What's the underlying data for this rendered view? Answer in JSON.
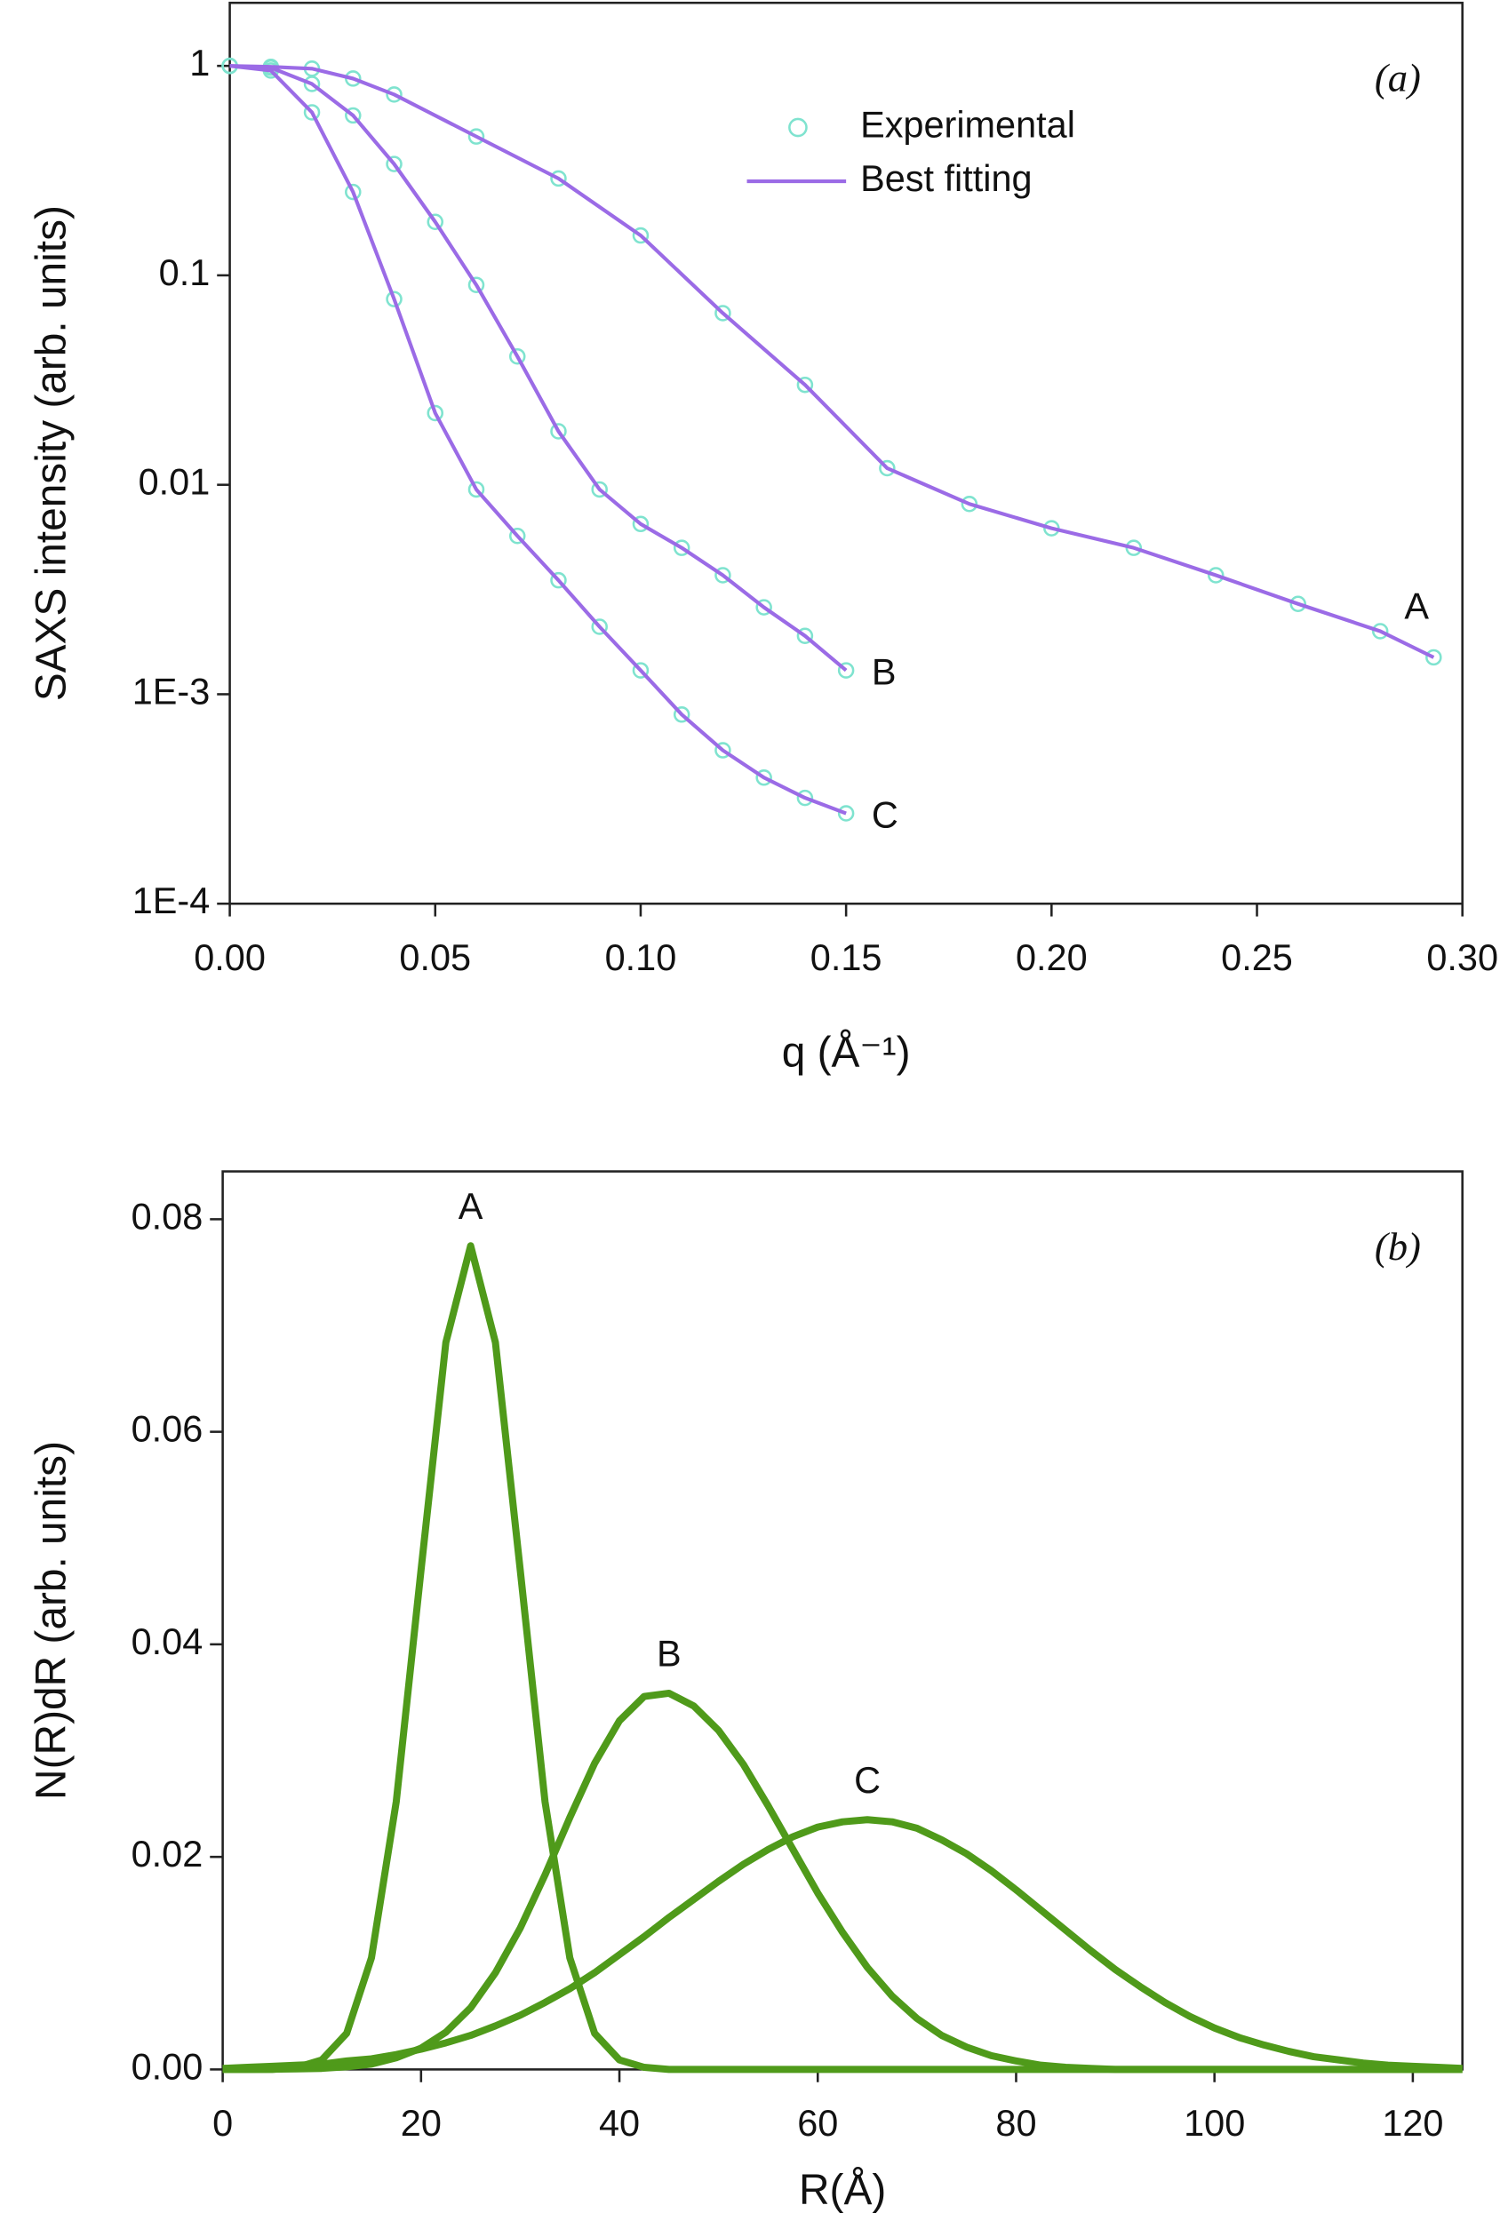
{
  "chart_data": [
    {
      "type": "saxs",
      "panel_label": "(a)",
      "x_label": "q (Å⁻¹)",
      "y_label": "SAXS intensity (arb. units)",
      "ylog": true,
      "legend": "upper right",
      "xlim": [
        0,
        0.3
      ],
      "ylim": [
        0.0001,
        2
      ],
      "xticks": [
        {
          "value": 0,
          "label": "0.00"
        },
        {
          "value": 0.05,
          "label": "0.05"
        },
        {
          "value": 0.1,
          "label": "0.10"
        },
        {
          "value": 0.15,
          "label": "0.15"
        },
        {
          "value": 0.2,
          "label": "0.20"
        },
        {
          "value": 0.25,
          "label": "0.25"
        },
        {
          "value": 0.3,
          "label": "0.30"
        }
      ],
      "yticks": [
        1,
        0.1,
        0.01,
        {
          "value": 0.001,
          "label": "1E-3"
        },
        {
          "value": 0.0001,
          "label": "1E-4"
        }
      ],
      "series": [
        {
          "name": "Experimental",
          "color": "#7fe3cf"
        },
        {
          "name": "Best fitting",
          "color": "#9b6be6"
        }
      ],
      "curves": [
        {
          "label": "A",
          "x": [
            0,
            0.01,
            0.02,
            0.03,
            0.04,
            0.06,
            0.08,
            0.1,
            0.12,
            0.14,
            0.16,
            0.18,
            0.2,
            0.22,
            0.24,
            0.26,
            0.28,
            0.293
          ],
          "experimental": [
            1,
            0.99,
            0.97,
            0.87,
            0.73,
            0.46,
            0.29,
            0.155,
            0.066,
            0.03,
            0.012,
            0.0081,
            0.0062,
            0.005,
            0.0037,
            0.0027,
            0.002,
            0.0015
          ],
          "fit": [
            1,
            0.99,
            0.97,
            0.87,
            0.73,
            0.46,
            0.29,
            0.155,
            0.066,
            0.03,
            0.012,
            0.0081,
            0.0062,
            0.005,
            0.0037,
            0.0027,
            0.002,
            0.0015
          ]
        },
        {
          "label": "B",
          "x": [
            0,
            0.01,
            0.02,
            0.03,
            0.04,
            0.05,
            0.06,
            0.07,
            0.08,
            0.09,
            0.1,
            0.11,
            0.12,
            0.13,
            0.14,
            0.15
          ],
          "experimental": [
            1,
            0.98,
            0.82,
            0.58,
            0.34,
            0.18,
            0.09,
            0.041,
            0.018,
            0.0095,
            0.0065,
            0.005,
            0.0037,
            0.0026,
            0.0019,
            0.0013
          ],
          "fit": [
            1,
            0.98,
            0.82,
            0.58,
            0.34,
            0.18,
            0.09,
            0.041,
            0.018,
            0.0095,
            0.0065,
            0.005,
            0.0037,
            0.0026,
            0.0019,
            0.0013
          ]
        },
        {
          "label": "C",
          "x": [
            0,
            0.01,
            0.02,
            0.03,
            0.04,
            0.05,
            0.06,
            0.07,
            0.08,
            0.09,
            0.1,
            0.11,
            0.12,
            0.13,
            0.14,
            0.15
          ],
          "experimental": [
            1,
            0.95,
            0.6,
            0.25,
            0.077,
            0.022,
            0.0095,
            0.0057,
            0.0035,
            0.0021,
            0.0013,
            0.0008,
            0.00054,
            0.0004,
            0.00032,
            0.00027
          ],
          "fit": [
            1,
            0.95,
            0.6,
            0.25,
            0.077,
            0.022,
            0.0095,
            0.0057,
            0.0035,
            0.0021,
            0.0013,
            0.0008,
            0.00054,
            0.0004,
            0.00032,
            0.00027
          ]
        }
      ]
    },
    {
      "type": "line",
      "panel_label": "(b)",
      "x_label": "R(Å)",
      "y_label": "N(R)dR (arb. units)",
      "xlim": [
        0,
        125
      ],
      "ylim": [
        0,
        0.0845
      ],
      "xticks": [
        0,
        20,
        40,
        60,
        80,
        100,
        120
      ],
      "yticks": [
        {
          "value": 0,
          "label": "0.00"
        },
        {
          "value": 0.02,
          "label": "0.02"
        },
        {
          "value": 0.04,
          "label": "0.04"
        },
        {
          "value": 0.06,
          "label": "0.06"
        },
        {
          "value": 0.08,
          "label": "0.08"
        }
      ],
      "x": [
        0,
        2.5,
        5,
        7.5,
        10,
        12.5,
        15,
        17.5,
        20,
        22.5,
        25,
        27.5,
        30,
        32.5,
        35,
        37.5,
        40,
        42.5,
        45,
        47.5,
        50,
        52.5,
        55,
        57.5,
        60,
        62.5,
        65,
        67.5,
        70,
        72.5,
        75,
        77.5,
        80,
        82.5,
        85,
        87.5,
        90,
        92.5,
        95,
        97.5,
        100,
        102.5,
        105,
        107.5,
        110,
        112.5,
        115,
        117.5,
        120,
        122.5,
        125
      ],
      "series": [
        {
          "name": "A",
          "color": "#4f9a1a",
          "values": [
            0,
            0,
            0,
            0.0002,
            0.0009,
            0.0034,
            0.0105,
            0.0252,
            0.047,
            0.0684,
            0.0775,
            0.0684,
            0.047,
            0.0252,
            0.0105,
            0.0034,
            0.0009,
            0.0002,
            0,
            0,
            0,
            0,
            0,
            0,
            0,
            0,
            0,
            0,
            0,
            0,
            0,
            0,
            0,
            0,
            0,
            0,
            0,
            0,
            0,
            0,
            0,
            0,
            0,
            0,
            0,
            0,
            0,
            0,
            0,
            0,
            0
          ]
        },
        {
          "name": "B",
          "color": "#4f9a1a",
          "values": [
            0,
            0,
            2e-05,
            5e-05,
            0.0001,
            0.00025,
            0.0005,
            0.0011,
            0.002,
            0.0035,
            0.0058,
            0.0091,
            0.0133,
            0.0183,
            0.0237,
            0.0288,
            0.0328,
            0.0351,
            0.0354,
            0.0342,
            0.0319,
            0.0287,
            0.0248,
            0.0207,
            0.0166,
            0.0129,
            0.0096,
            0.0069,
            0.0048,
            0.0032,
            0.0021,
            0.0013,
            0.0008,
            0.0004,
            0.0002,
            0.0001,
            0,
            0,
            0,
            0,
            0,
            0,
            0,
            0,
            0,
            0,
            0,
            0,
            0,
            0,
            0
          ]
        },
        {
          "name": "C",
          "color": "#4f9a1a",
          "values": [
            0.0001,
            0.0002,
            0.0003,
            0.0004,
            0.0005,
            0.0008,
            0.001,
            0.0014,
            0.0019,
            0.0025,
            0.0032,
            0.0041,
            0.0051,
            0.0063,
            0.0076,
            0.0091,
            0.0108,
            0.0125,
            0.0143,
            0.016,
            0.0177,
            0.0193,
            0.0207,
            0.0219,
            0.0228,
            0.0233,
            0.0235,
            0.0233,
            0.0227,
            0.0216,
            0.0203,
            0.0187,
            0.0169,
            0.015,
            0.0131,
            0.0112,
            0.0094,
            0.0078,
            0.0063,
            0.005,
            0.0039,
            0.003,
            0.0023,
            0.0017,
            0.0012,
            0.0009,
            0.0006,
            0.0004,
            0.0003,
            0.0002,
            0.0001
          ]
        }
      ]
    }
  ]
}
